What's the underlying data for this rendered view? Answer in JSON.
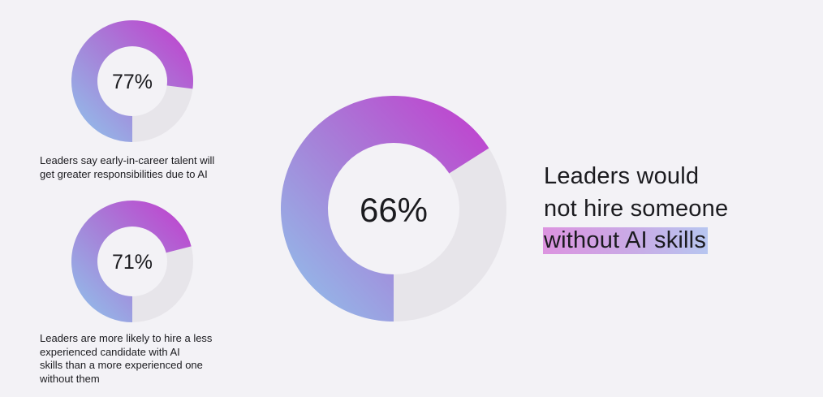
{
  "chart_data": {
    "type": "pie",
    "charts": [
      {
        "id": "small-top",
        "percent": 77,
        "label": "77%",
        "caption": [
          "Leaders say early-in-career talent will",
          "get greater responsibilities due to AI"
        ]
      },
      {
        "id": "small-bottom",
        "percent": 71,
        "label": "71%",
        "caption": [
          "Leaders are more likely to hire a less",
          "experienced candidate with AI",
          "skills than a more experienced one",
          "without them"
        ]
      },
      {
        "id": "large",
        "percent": 66,
        "label": "66%",
        "caption": [
          "Leaders would",
          "not hire someone",
          "without AI skills"
        ]
      }
    ]
  },
  "colors": {
    "background": "#f3f2f6",
    "track": "#e7e5ea",
    "gradient_blue": "#8fc6ec",
    "gradient_violet": "#a680d8",
    "gradient_magenta": "#c33acd",
    "highlight_start": "#dc94e0",
    "highlight_end": "#b7c6f0"
  }
}
